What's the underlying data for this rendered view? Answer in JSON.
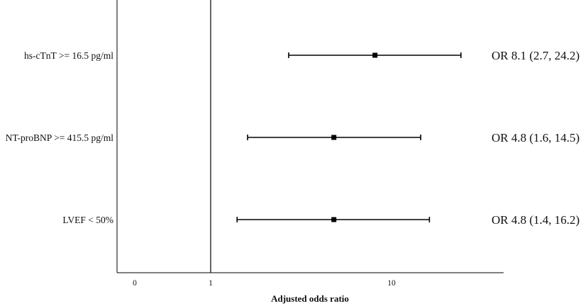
{
  "chart_data": {
    "type": "forest",
    "title": "",
    "xlabel": "Adjusted odds ratio",
    "ylabel": "",
    "x_scale": "log",
    "x_ticks": [
      "0",
      "1",
      "10"
    ],
    "reference_line": 1,
    "grid": false,
    "rows": [
      {
        "label": "hs-cTnT >= 16.5 pg/ml",
        "or": 8.1,
        "lower": 2.7,
        "upper": 24.2,
        "annotation": "OR 8.1 (2.7, 24.2)"
      },
      {
        "label": "NT-proBNP >= 415.5 pg/ml",
        "or": 4.8,
        "lower": 1.6,
        "upper": 14.5,
        "annotation": "OR 4.8 (1.6, 14.5)"
      },
      {
        "label": "LVEF < 50%",
        "or": 4.8,
        "lower": 1.4,
        "upper": 16.2,
        "annotation": "OR 4.8 (1.4, 16.2)"
      }
    ]
  }
}
